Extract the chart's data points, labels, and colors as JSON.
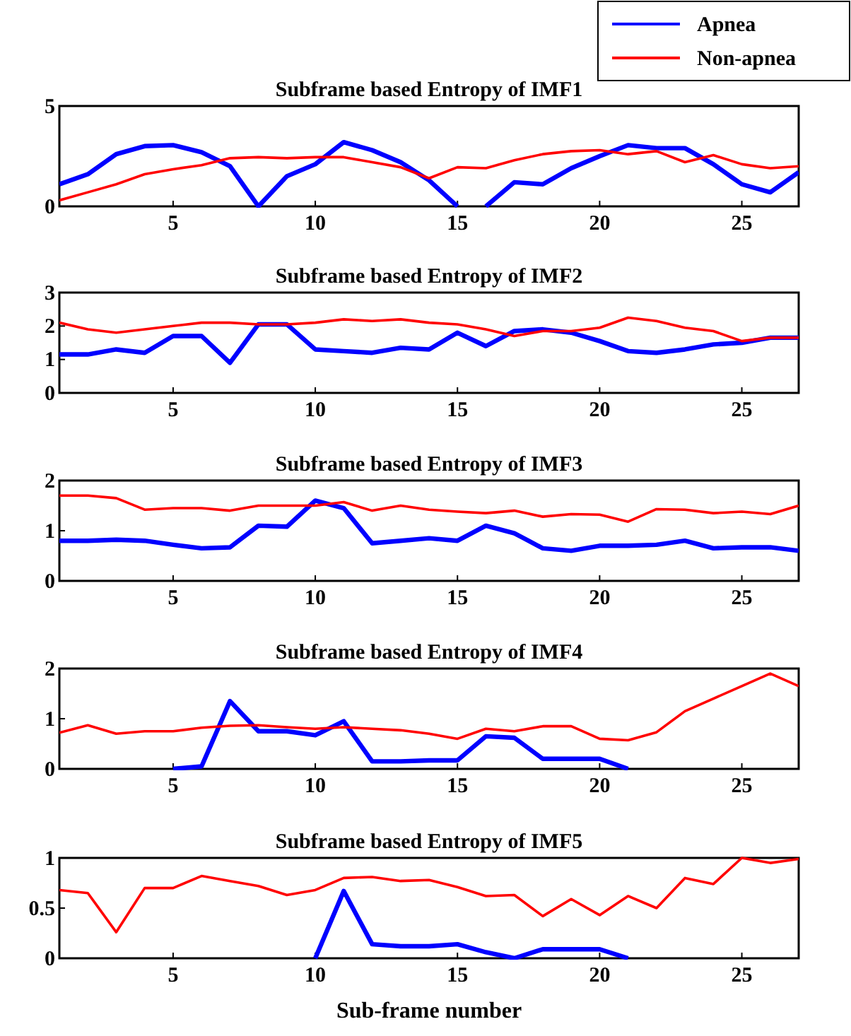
{
  "chart_data": [
    {
      "type": "line",
      "title": "Subframe based Entropy of IMF1",
      "xlim": [
        1,
        27
      ],
      "xticks": [
        5,
        10,
        15,
        20,
        25
      ],
      "ylim": [
        0,
        5
      ],
      "yticks": [
        0,
        5
      ],
      "legend": "top right",
      "series": [
        {
          "name": "Apnea",
          "color": "#0000ff",
          "x": [
            1,
            2,
            3,
            4,
            5,
            6,
            7,
            8,
            9,
            10,
            11,
            12,
            13,
            14,
            15,
            15.5,
            16,
            17,
            18,
            19,
            20,
            21,
            22,
            23,
            24,
            25,
            26,
            27
          ],
          "values": [
            1.1,
            1.6,
            2.6,
            3.0,
            3.05,
            2.7,
            2.0,
            0,
            1.5,
            2.1,
            3.2,
            2.8,
            2.2,
            1.3,
            0,
            null,
            0,
            1.2,
            1.1,
            1.9,
            2.5,
            3.05,
            2.9,
            2.9,
            2.1,
            1.1,
            0.7,
            1.7
          ]
        },
        {
          "name": "Non-apnea",
          "color": "#ff0000",
          "x": [
            1,
            2,
            3,
            4,
            5,
            6,
            7,
            8,
            9,
            10,
            11,
            12,
            13,
            14,
            15,
            16,
            17,
            18,
            19,
            20,
            21,
            22,
            23,
            24,
            25,
            26,
            27
          ],
          "values": [
            0.3,
            0.7,
            1.1,
            1.6,
            1.85,
            2.05,
            2.4,
            2.45,
            2.4,
            2.45,
            2.45,
            2.2,
            1.95,
            1.4,
            1.95,
            1.9,
            2.3,
            2.6,
            2.75,
            2.8,
            2.6,
            2.75,
            2.2,
            2.55,
            2.1,
            1.9,
            2.0
          ]
        }
      ]
    },
    {
      "type": "line",
      "title": "Subframe based Entropy of IMF2",
      "xlim": [
        1,
        27
      ],
      "xticks": [
        5,
        10,
        15,
        20,
        25
      ],
      "ylim": [
        0,
        3
      ],
      "yticks": [
        0,
        1,
        2,
        3
      ],
      "series": [
        {
          "color": "#0000ff",
          "x": [
            1,
            2,
            3,
            4,
            5,
            6,
            7,
            8,
            9,
            10,
            11,
            12,
            13,
            14,
            15,
            16,
            17,
            18,
            19,
            20,
            21,
            22,
            23,
            24,
            25,
            26,
            27
          ],
          "values": [
            1.15,
            1.15,
            1.3,
            1.2,
            1.7,
            1.7,
            0.9,
            2.05,
            2.05,
            1.3,
            1.25,
            1.2,
            1.35,
            1.3,
            1.8,
            1.4,
            1.85,
            1.9,
            1.8,
            1.55,
            1.25,
            1.2,
            1.3,
            1.45,
            1.5,
            1.65,
            1.65
          ]
        },
        {
          "color": "#ff0000",
          "x": [
            1,
            2,
            3,
            4,
            5,
            6,
            7,
            8,
            9,
            10,
            11,
            12,
            13,
            14,
            15,
            16,
            17,
            18,
            19,
            20,
            21,
            22,
            23,
            24,
            25,
            26,
            27
          ],
          "values": [
            2.1,
            1.9,
            1.8,
            1.9,
            2.0,
            2.1,
            2.1,
            2.05,
            2.05,
            2.1,
            2.2,
            2.15,
            2.2,
            2.1,
            2.05,
            1.9,
            1.7,
            1.85,
            1.85,
            1.95,
            2.25,
            2.15,
            1.95,
            1.85,
            1.55,
            1.65,
            1.65
          ]
        }
      ]
    },
    {
      "type": "line",
      "title": "Subframe based Entropy of IMF3",
      "xlim": [
        1,
        27
      ],
      "xticks": [
        5,
        10,
        15,
        20,
        25
      ],
      "ylim": [
        0,
        2
      ],
      "yticks": [
        0,
        1,
        2
      ],
      "series": [
        {
          "color": "#0000ff",
          "x": [
            1,
            2,
            3,
            4,
            5,
            6,
            7,
            8,
            9,
            10,
            11,
            12,
            13,
            14,
            15,
            16,
            17,
            18,
            19,
            20,
            21,
            22,
            23,
            24,
            25,
            26,
            27
          ],
          "values": [
            0.8,
            0.8,
            0.82,
            0.8,
            0.72,
            0.65,
            0.67,
            1.1,
            1.08,
            1.6,
            1.45,
            0.75,
            0.8,
            0.85,
            0.8,
            1.1,
            0.95,
            0.65,
            0.6,
            0.7,
            0.7,
            0.72,
            0.8,
            0.65,
            0.67,
            0.67,
            0.6
          ]
        },
        {
          "color": "#ff0000",
          "x": [
            1,
            2,
            3,
            4,
            5,
            6,
            7,
            8,
            9,
            10,
            11,
            12,
            13,
            14,
            15,
            16,
            17,
            18,
            19,
            20,
            21,
            22,
            23,
            24,
            25,
            26,
            27
          ],
          "values": [
            1.7,
            1.7,
            1.65,
            1.42,
            1.45,
            1.45,
            1.4,
            1.5,
            1.5,
            1.5,
            1.57,
            1.4,
            1.5,
            1.42,
            1.38,
            1.35,
            1.4,
            1.28,
            1.33,
            1.32,
            1.18,
            1.43,
            1.42,
            1.35,
            1.38,
            1.33,
            1.5
          ]
        }
      ]
    },
    {
      "type": "line",
      "title": "Subframe based Entropy of IMF4",
      "xlim": [
        1,
        27
      ],
      "xticks": [
        5,
        10,
        15,
        20,
        25
      ],
      "ylim": [
        0,
        2
      ],
      "yticks": [
        0,
        1,
        2
      ],
      "series": [
        {
          "color": "#0000ff",
          "x": [
            5,
            6,
            7,
            8,
            9,
            10,
            11,
            12,
            13,
            14,
            15,
            16,
            17,
            18,
            19,
            20,
            21
          ],
          "values": [
            0,
            0.05,
            1.35,
            0.75,
            0.75,
            0.67,
            0.95,
            0.15,
            0.15,
            0.17,
            0.17,
            0.65,
            0.62,
            0.2,
            0.2,
            0.2,
            0
          ]
        },
        {
          "color": "#ff0000",
          "x": [
            1,
            2,
            3,
            4,
            5,
            6,
            7,
            8,
            9,
            10,
            11,
            12,
            13,
            14,
            15,
            16,
            17,
            18,
            19,
            20,
            21,
            22,
            23,
            24,
            25,
            26,
            27
          ],
          "values": [
            0.72,
            0.87,
            0.7,
            0.75,
            0.75,
            0.82,
            0.86,
            0.87,
            0.83,
            0.8,
            0.83,
            0.8,
            0.77,
            0.7,
            0.6,
            0.8,
            0.75,
            0.85,
            0.85,
            0.6,
            0.57,
            0.73,
            1.15,
            1.4,
            1.65,
            1.9,
            1.65
          ]
        }
      ]
    },
    {
      "type": "line",
      "title": "Subframe based Entropy of IMF5",
      "xlabel": "Sub-frame number",
      "xlim": [
        1,
        27
      ],
      "xticks": [
        5,
        10,
        15,
        20,
        25
      ],
      "ylim": [
        0,
        1
      ],
      "yticks": [
        0,
        0.5,
        1
      ],
      "series": [
        {
          "color": "#0000ff",
          "x": [
            10,
            11,
            12,
            13,
            14,
            15,
            16,
            17,
            18,
            19,
            20,
            21
          ],
          "values": [
            0,
            0.67,
            0.14,
            0.12,
            0.12,
            0.14,
            0.06,
            0,
            0.09,
            0.09,
            0.09,
            0
          ]
        },
        {
          "color": "#ff0000",
          "x": [
            1,
            2,
            3,
            4,
            5,
            6,
            7,
            8,
            9,
            10,
            11,
            12,
            13,
            14,
            15,
            16,
            17,
            18,
            19,
            20,
            21,
            22,
            23,
            24,
            25,
            26,
            27
          ],
          "values": [
            0.68,
            0.65,
            0.26,
            0.7,
            0.7,
            0.82,
            0.77,
            0.72,
            0.63,
            0.68,
            0.8,
            0.81,
            0.77,
            0.78,
            0.71,
            0.62,
            0.63,
            0.42,
            0.59,
            0.43,
            0.62,
            0.5,
            0.8,
            0.74,
            1.0,
            0.95,
            0.99
          ]
        }
      ]
    }
  ]
}
